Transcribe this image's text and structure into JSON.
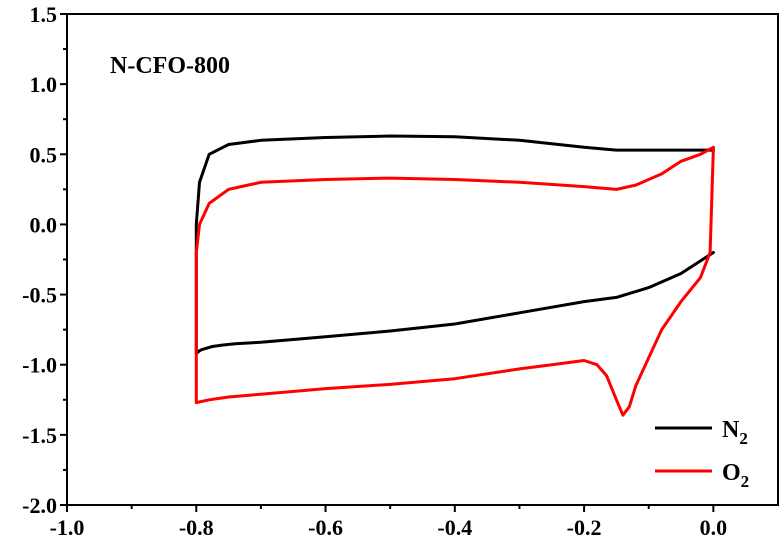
{
  "chart_data": {
    "type": "line",
    "title": "N-CFO-800",
    "xlabel": "",
    "ylabel": "",
    "xlim": [
      -1.0,
      0.1
    ],
    "ylim": [
      -2.0,
      1.5
    ],
    "x_ticks": [
      -1.0,
      -0.8,
      -0.6,
      -0.4,
      -0.2,
      0.0
    ],
    "x_tick_labels": [
      "-1.0",
      "-0.8",
      "-0.6",
      "-0.4",
      "-0.2",
      "0.0"
    ],
    "y_ticks": [
      1.5,
      1.0,
      0.5,
      0.0,
      -0.5,
      -1.0,
      -1.5,
      -2.0
    ],
    "y_tick_labels": [
      "1.5",
      "1.0",
      "0.5",
      "0.0",
      "-0.5",
      "-1.0",
      "-1.5",
      "-2.0"
    ],
    "grid": false,
    "legend_position": "bottom-right",
    "series": [
      {
        "name": "N",
        "name_sub": "2",
        "color": "#000000",
        "x": [
          0.0,
          -0.02,
          -0.05,
          -0.1,
          -0.15,
          -0.2,
          -0.3,
          -0.4,
          -0.5,
          -0.6,
          -0.7,
          -0.75,
          -0.78,
          -0.795,
          -0.8,
          -0.8,
          -0.8,
          -0.795,
          -0.79,
          -0.775,
          -0.76,
          -0.74,
          -0.7,
          -0.6,
          -0.5,
          -0.4,
          -0.3,
          -0.2,
          -0.15,
          -0.1,
          -0.05,
          0.0
        ],
        "y": [
          0.53,
          0.53,
          0.53,
          0.53,
          0.53,
          0.55,
          0.6,
          0.625,
          0.63,
          0.62,
          0.6,
          0.57,
          0.5,
          0.3,
          0.0,
          -0.4,
          -0.92,
          -0.9,
          -0.89,
          -0.87,
          -0.86,
          -0.85,
          -0.84,
          -0.8,
          -0.76,
          -0.71,
          -0.63,
          -0.55,
          -0.52,
          -0.45,
          -0.35,
          -0.2
        ]
      },
      {
        "name": "O",
        "name_sub": "2",
        "color": "#ff0000",
        "x": [
          0.0,
          -0.02,
          -0.05,
          -0.08,
          -0.1,
          -0.12,
          -0.15,
          -0.2,
          -0.3,
          -0.4,
          -0.5,
          -0.6,
          -0.7,
          -0.75,
          -0.78,
          -0.795,
          -0.8,
          -0.8,
          -0.8,
          -0.78,
          -0.75,
          -0.7,
          -0.6,
          -0.5,
          -0.4,
          -0.3,
          -0.25,
          -0.2,
          -0.18,
          -0.165,
          -0.15,
          -0.14,
          -0.13,
          -0.12,
          -0.1,
          -0.08,
          -0.05,
          -0.02,
          -0.005,
          0.0
        ],
        "y": [
          0.55,
          0.5,
          0.45,
          0.36,
          0.32,
          0.28,
          0.25,
          0.27,
          0.3,
          0.32,
          0.33,
          0.32,
          0.3,
          0.25,
          0.15,
          0.0,
          -0.2,
          -0.8,
          -1.27,
          -1.25,
          -1.23,
          -1.21,
          -1.17,
          -1.14,
          -1.1,
          -1.03,
          -1.0,
          -0.97,
          -1.0,
          -1.08,
          -1.25,
          -1.36,
          -1.3,
          -1.15,
          -0.95,
          -0.75,
          -0.55,
          -0.38,
          -0.2,
          0.55
        ]
      }
    ]
  }
}
